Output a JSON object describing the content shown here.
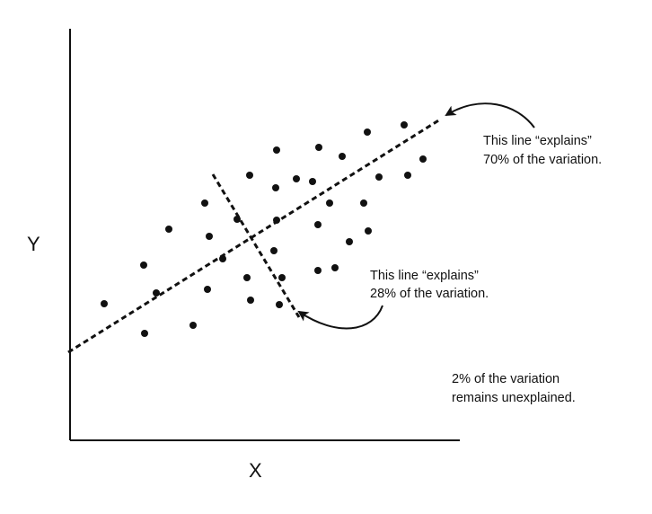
{
  "axes": {
    "x_label": "X",
    "y_label": "Y"
  },
  "annotations": {
    "primary_line": [
      "This line “explains”",
      "70% of the variation."
    ],
    "secondary_line": [
      "This line “explains”",
      "28% of the variation."
    ],
    "unexplained": [
      "2% of the variation",
      "remains unexplained."
    ]
  },
  "colors": {
    "ink": "#111111",
    "background": "#ffffff"
  }
}
